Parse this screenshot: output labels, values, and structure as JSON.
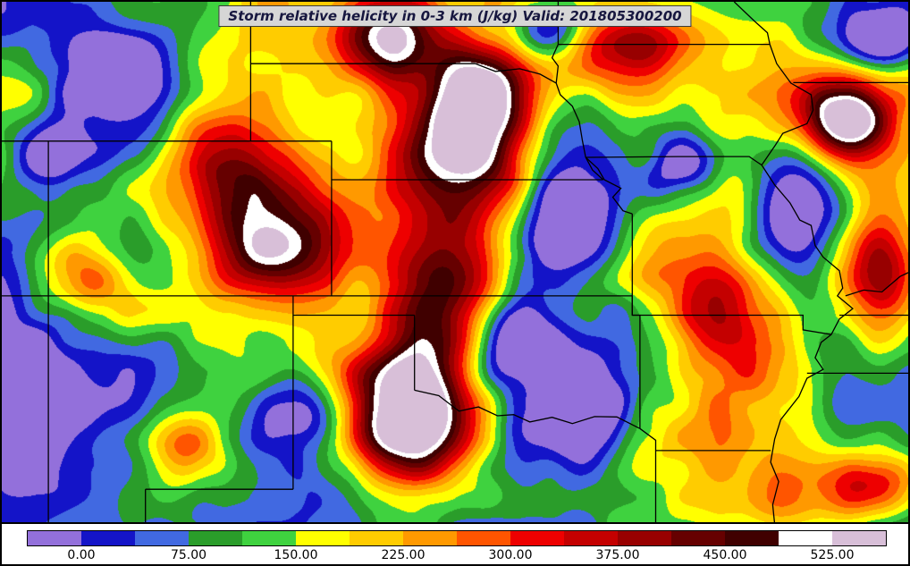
{
  "title": {
    "text": "Storm relative helicity in 0-3 km (J/kg) Valid: 201805300200"
  },
  "colorbar": {
    "tick_labels": [
      "0.00",
      "75.00",
      "150.00",
      "225.00",
      "300.00",
      "375.00",
      "450.00",
      "525.00"
    ],
    "tick_values": [
      0,
      75,
      150,
      225,
      300,
      375,
      450,
      525
    ],
    "levels": [
      -37.5,
      0,
      37.5,
      75,
      112.5,
      150,
      187.5,
      225,
      262.5,
      300,
      337.5,
      375,
      412.5,
      450,
      487.5,
      525,
      562.5
    ],
    "colors": [
      "#9370db",
      "#1414c8",
      "#4169e1",
      "#2a9d2a",
      "#3fd23f",
      "#ffff00",
      "#ffcc00",
      "#ff9900",
      "#ff5500",
      "#ee0000",
      "#c40000",
      "#980000",
      "#660000",
      "#400000",
      "#ffffff",
      "#d8bfd8"
    ]
  },
  "chart_data": {
    "type": "heatmap",
    "title": "Storm relative helicity in 0-3 km (J/kg) Valid: 201805300200",
    "variable": "storm relative helicity 0-3 km",
    "units": "J/kg",
    "valid_time": "201805300200",
    "value_range": [
      -37.5,
      562.5
    ],
    "contour_interval": 37.5,
    "colorbar_ticks": [
      0,
      75,
      150,
      225,
      300,
      375,
      450,
      525
    ],
    "legend_position": "bottom",
    "notes": "Filled-contour field over the central US with state borders; maxima above 525 J/kg (white/light-purple fill) over Oklahoma, central Kansas/Nebraska and western Missouri/Iowa; broad dark-red band from Nebraska through Oklahoma; scattered sub-zero (purple) pockets inside blue minima."
  }
}
